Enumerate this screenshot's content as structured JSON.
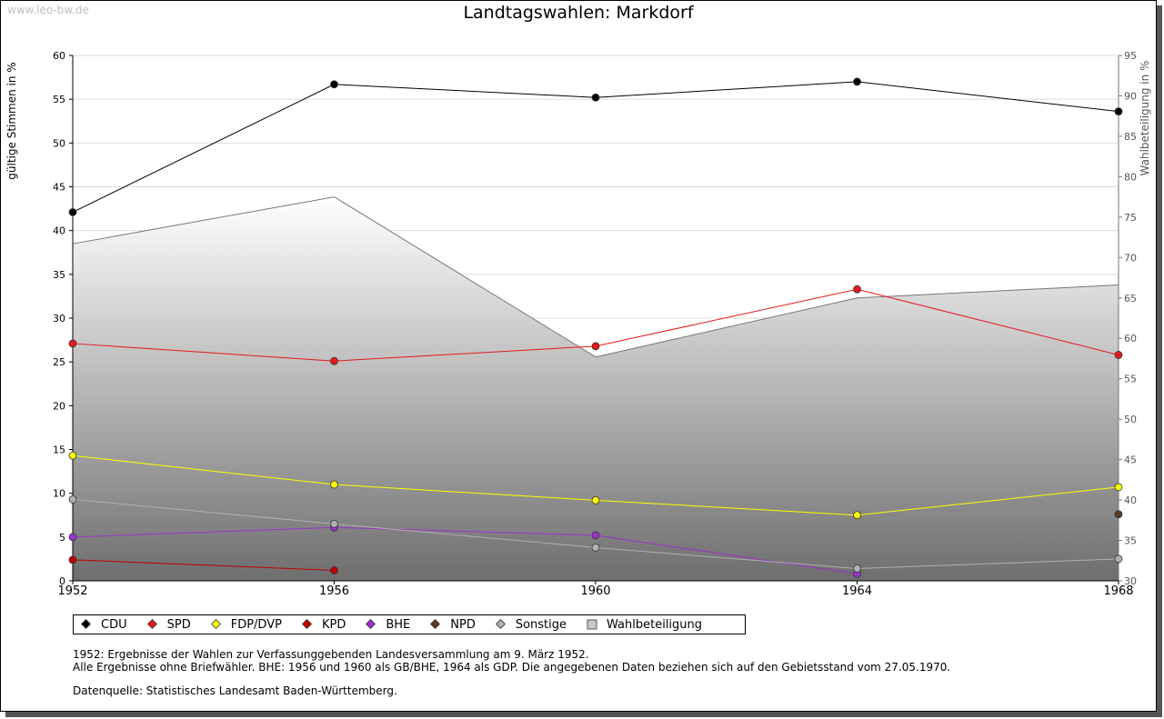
{
  "watermark": "www.leo-bw.de",
  "chart_data": {
    "type": "line",
    "title": "Landtagswahlen: Markdorf",
    "ylabel": "gültige Stimmen in %",
    "y2label": "Wahlbeteiligung in %",
    "x": [
      1952,
      1956,
      1960,
      1964,
      1968
    ],
    "x_ticks": [
      "1952",
      "1956",
      "1960",
      "1964",
      "1968"
    ],
    "ylim": [
      0,
      60
    ],
    "y_ticks": [
      "0",
      "5",
      "10",
      "15",
      "20",
      "25",
      "30",
      "35",
      "40",
      "45",
      "50",
      "55",
      "60"
    ],
    "y2lim": [
      30,
      95
    ],
    "y2_ticks": [
      "30",
      "35",
      "40",
      "45",
      "50",
      "55",
      "60",
      "65",
      "70",
      "75",
      "80",
      "85",
      "90",
      "95"
    ],
    "grid": true,
    "legend_position": "bottom",
    "series": [
      {
        "name": "CDU",
        "color": "#000000",
        "values": [
          42.1,
          56.7,
          55.2,
          57.0,
          53.6
        ]
      },
      {
        "name": "SPD",
        "color": "#e41a1c",
        "values": [
          27.1,
          25.1,
          26.8,
          33.3,
          25.8
        ]
      },
      {
        "name": "FDP/DVP",
        "color": "#ffff00",
        "values": [
          14.3,
          11.0,
          9.2,
          7.5,
          10.7
        ]
      },
      {
        "name": "KPD",
        "color": "#c00000",
        "values": [
          2.4,
          1.2,
          null,
          null,
          null
        ]
      },
      {
        "name": "BHE",
        "color": "#9933cc",
        "values": [
          5.0,
          6.1,
          5.2,
          0.8,
          null
        ]
      },
      {
        "name": "NPD",
        "color": "#5a3a2a",
        "values": [
          null,
          null,
          null,
          null,
          7.6
        ]
      },
      {
        "name": "Sonstige",
        "color": "#b0b0b0",
        "values": [
          9.3,
          6.5,
          3.8,
          1.4,
          2.5
        ]
      }
    ],
    "turnout": {
      "name": "Wahlbeteiligung",
      "values": [
        71.7,
        77.5,
        57.7,
        65.0,
        66.6
      ]
    }
  },
  "notes": {
    "line1": "1952: Ergebnisse der Wahlen zur Verfassunggebenden Landesversammlung am 9. März 1952.",
    "line2": "Alle Ergebnisse ohne Briefwähler. BHE: 1956 und 1960 als GB/BHE, 1964 als GDP. Die angegebenen Daten beziehen sich auf den Gebietsstand vom 27.05.1970.",
    "source": "Datenquelle: Statistisches Landesamt Baden-Württemberg."
  }
}
